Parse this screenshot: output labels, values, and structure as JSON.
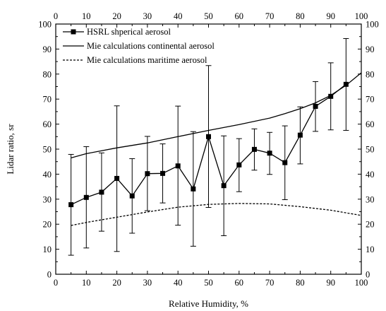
{
  "chart_data": {
    "type": "line",
    "xlabel": "Relative Humidity, %",
    "ylabel": "Lidar ratio, sr",
    "xlim": [
      0,
      100
    ],
    "ylim": [
      0,
      100
    ],
    "xticks": [
      0,
      10,
      20,
      30,
      40,
      50,
      60,
      70,
      80,
      90,
      100
    ],
    "yticks": [
      0,
      10,
      20,
      30,
      40,
      50,
      60,
      70,
      80,
      90,
      100
    ],
    "tick_labels_on": [
      "bottom",
      "top",
      "left",
      "right"
    ],
    "grid": false,
    "legend_position": "top-left",
    "series": [
      {
        "name": "HSRL shperical aerosol",
        "style": "solid line with square markers and error bars",
        "color": "#000000",
        "x": [
          5,
          10,
          15,
          20,
          25,
          30,
          35,
          40,
          45,
          50,
          55,
          60,
          65,
          70,
          75,
          80,
          85,
          90,
          95
        ],
        "y": [
          27.8,
          30.7,
          32.8,
          38.3,
          31.3,
          40.2,
          40.3,
          43.3,
          34.1,
          55,
          35.4,
          43.7,
          49.9,
          48.4,
          44.6,
          55.6,
          67.1,
          71.1,
          75.9
        ],
        "y_lower": [
          7.6,
          10.5,
          17.2,
          9.1,
          16.4,
          25.4,
          28.5,
          19.6,
          11.2,
          26.7,
          15.4,
          33,
          41.6,
          39.9,
          29.8,
          44.1,
          57.1,
          57.7,
          57.5
        ],
        "y_upper": [
          47.9,
          51,
          48.5,
          67.3,
          46.2,
          55.1,
          52.1,
          67.2,
          57,
          83.4,
          55.3,
          54.2,
          58.1,
          56.7,
          59.3,
          66.9,
          77,
          84.5,
          94.2
        ]
      },
      {
        "name": "Mie calculations continental aerosol",
        "style": "solid line",
        "color": "#000000",
        "x": [
          5,
          10,
          20,
          30,
          40,
          50,
          60,
          70,
          75,
          80,
          85,
          90,
          95,
          100
        ],
        "y": [
          46.5,
          48.2,
          50.5,
          52.5,
          55,
          57.5,
          59.8,
          62.4,
          64.2,
          66.2,
          68.5,
          71.5,
          75.5,
          80.5
        ]
      },
      {
        "name": "Mie calculations maritime aerosol",
        "style": "dashed line",
        "color": "#000000",
        "x": [
          5,
          10,
          20,
          30,
          40,
          50,
          60,
          70,
          80,
          90,
          100
        ],
        "y": [
          19.5,
          20.7,
          22.8,
          24.9,
          26.8,
          27.9,
          28.3,
          28.1,
          27,
          25.6,
          23.5
        ]
      }
    ]
  }
}
